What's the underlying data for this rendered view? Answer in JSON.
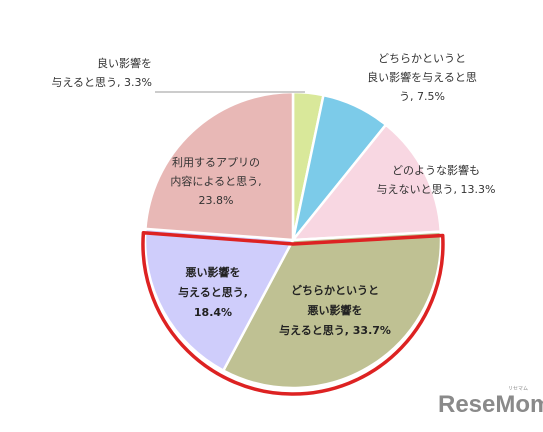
{
  "chart_data": {
    "type": "pie",
    "start_angle_deg": 0,
    "direction": "clockwise",
    "slices": [
      {
        "label_lines": [
          "良い影響を",
          "与えると思う, 3.3%"
        ],
        "value": 3.3,
        "color": "#d9e89a",
        "highlight": false
      },
      {
        "label_lines": [
          "どちらかというと",
          "良い影響を与えると思",
          "う, 7.5%"
        ],
        "value": 7.5,
        "color": "#7ccbe9",
        "highlight": false
      },
      {
        "label_lines": [
          "どのような影響も",
          "与えないと思う, 13.3%"
        ],
        "value": 13.3,
        "color": "#f8d7e2",
        "highlight": false
      },
      {
        "label_lines": [
          "どちらかというと",
          "悪い影響を",
          "与えると思う, 33.7%"
        ],
        "value": 33.7,
        "color": "#bfc193",
        "highlight": true
      },
      {
        "label_lines": [
          "悪い影響を",
          "与えると思う,",
          "18.4%"
        ],
        "value": 18.4,
        "color": "#cfcdfb",
        "highlight": true
      },
      {
        "label_lines": [
          "利用するアプリの",
          "内容によると思う,",
          "23.8%"
        ],
        "value": 23.8,
        "color": "#e8b8b6",
        "highlight": false
      }
    ],
    "highlight_color": "#dd2222"
  },
  "logo": {
    "text": "ReseMom",
    "kana": "リセマム"
  }
}
